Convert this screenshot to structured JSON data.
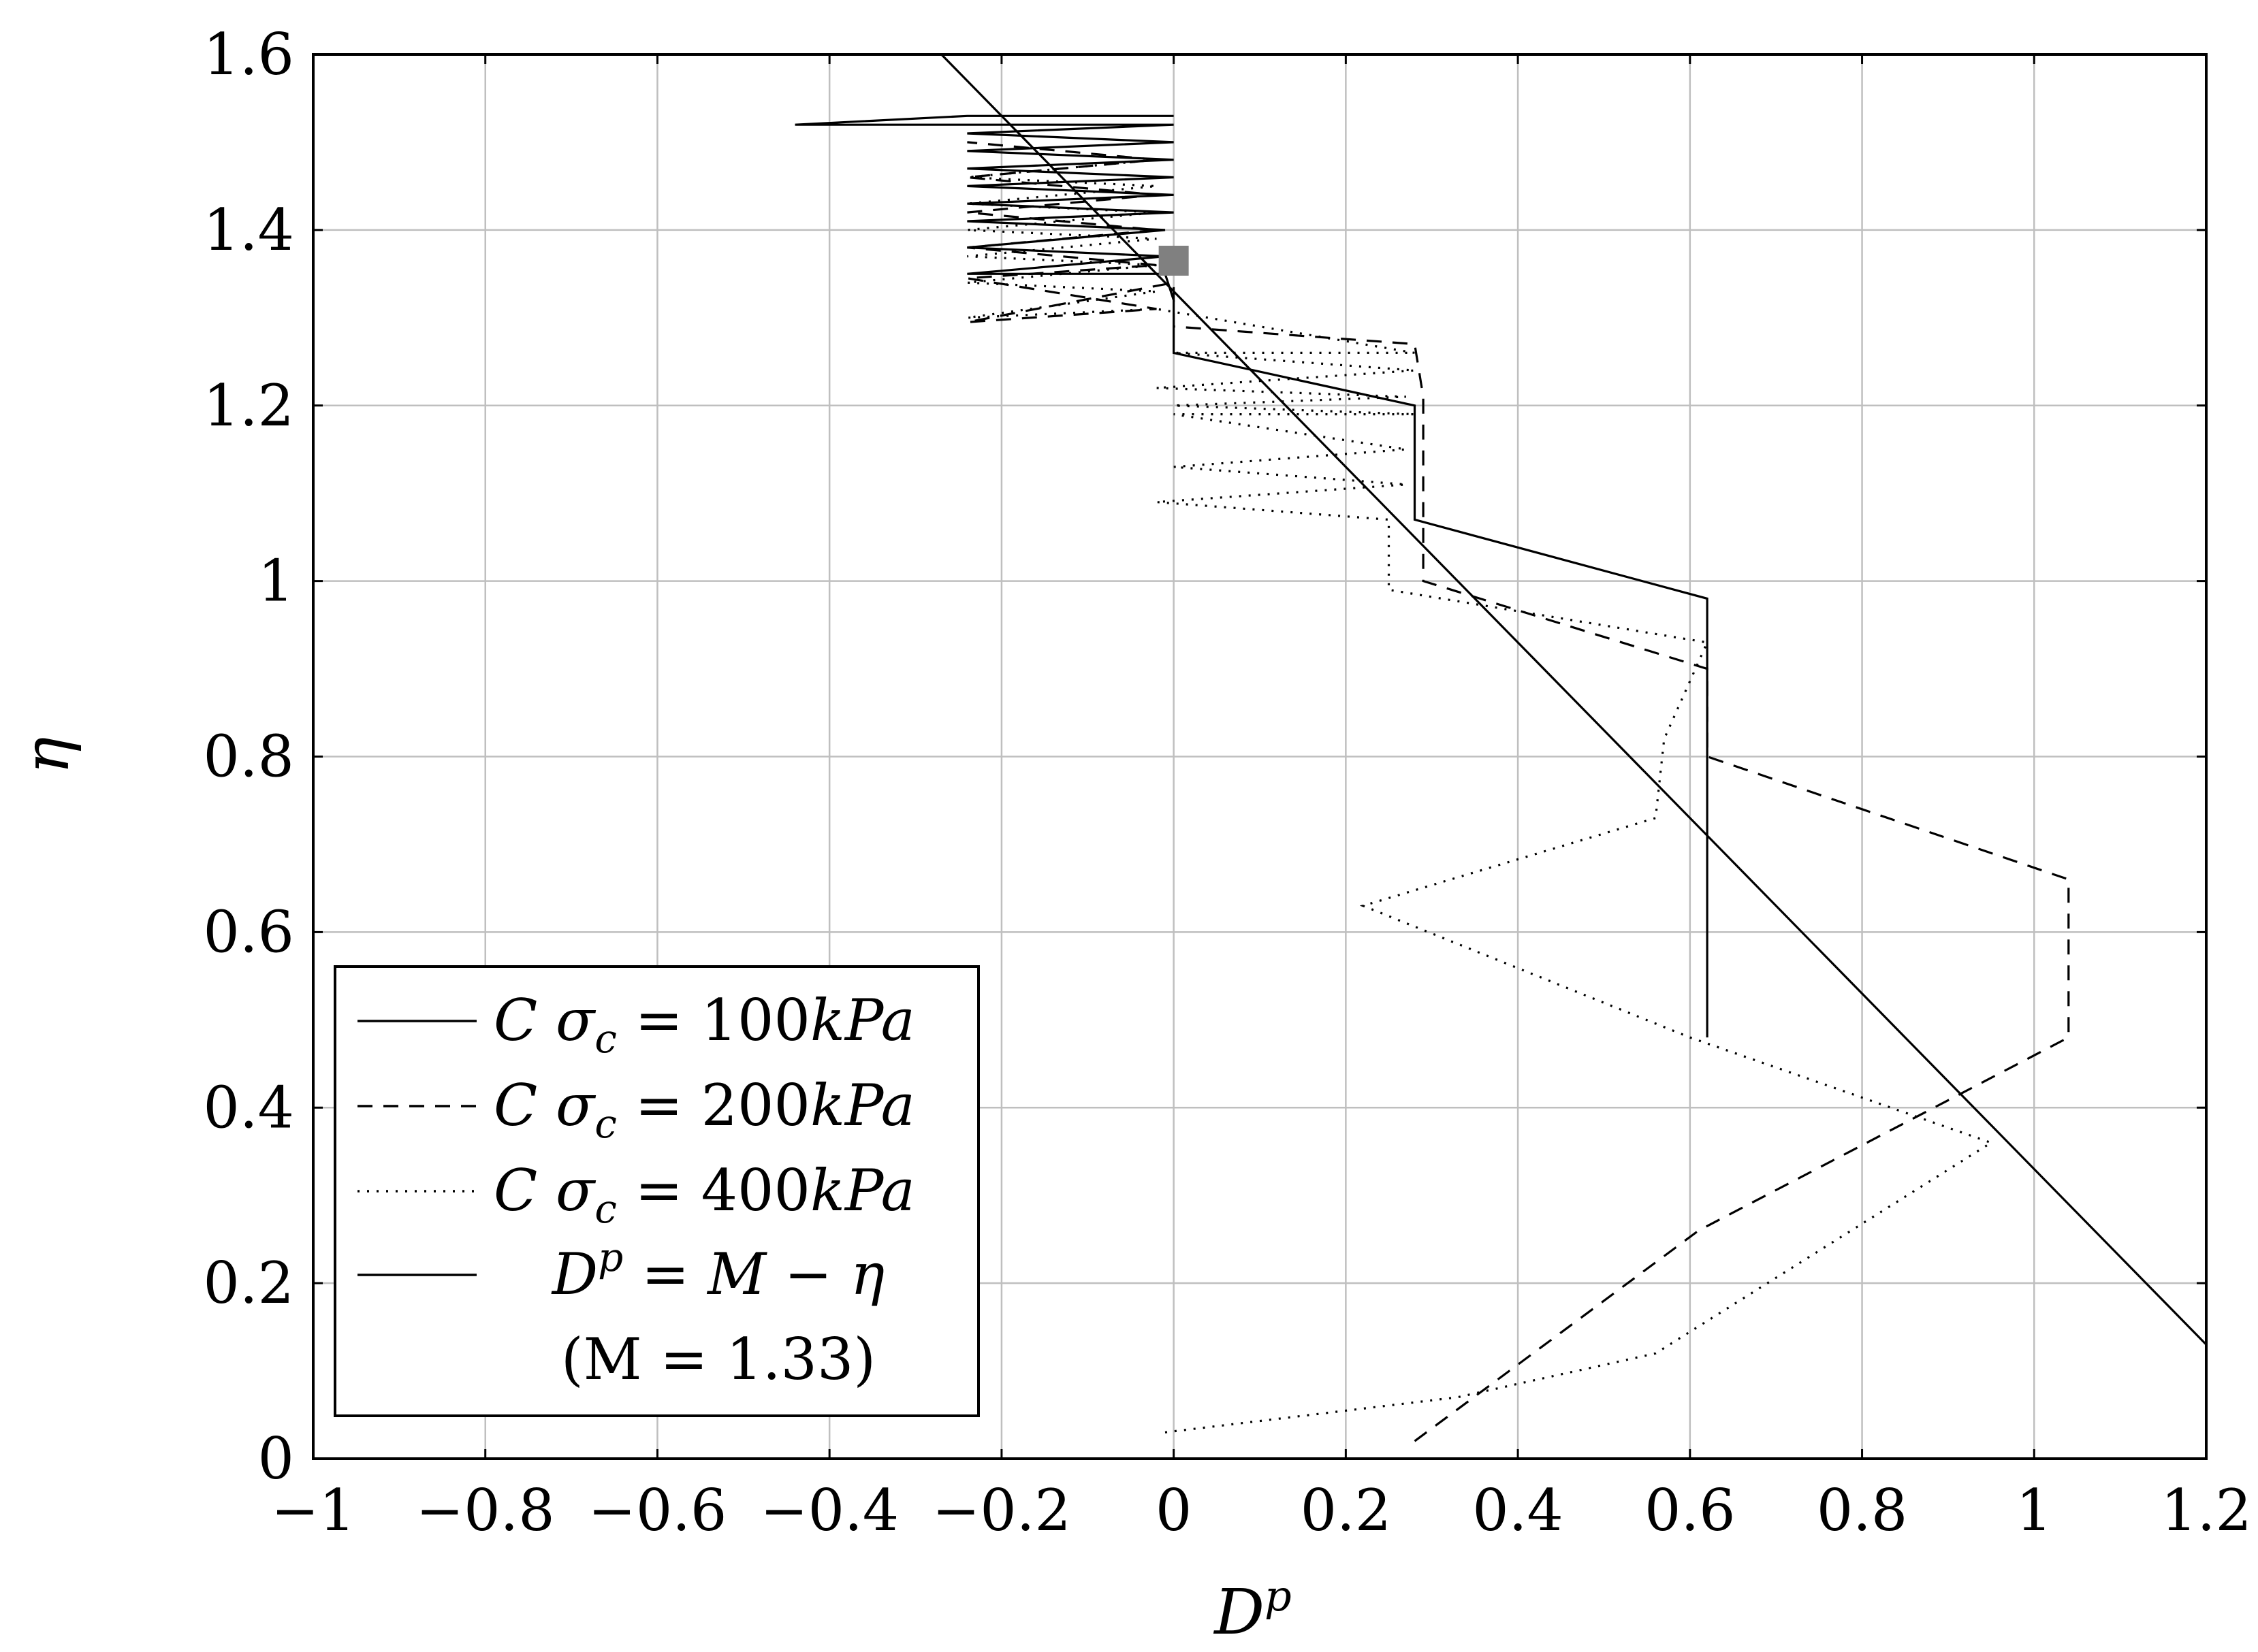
{
  "chart_data": {
    "type": "line",
    "xlabel": "D",
    "xlabel_sup": "p",
    "ylabel": "η",
    "xlim": [
      -1,
      1.2
    ],
    "ylim": [
      0,
      1.6
    ],
    "grid": true,
    "legend_position": "bottom-left",
    "x_ticks": [
      {
        "value": -1,
        "label": "−1"
      },
      {
        "value": -0.8,
        "label": "−0.8"
      },
      {
        "value": -0.6,
        "label": "−0.6"
      },
      {
        "value": -0.4,
        "label": "−0.4"
      },
      {
        "value": -0.2,
        "label": "−0.2"
      },
      {
        "value": 0,
        "label": "0"
      },
      {
        "value": 0.2,
        "label": "0.2"
      },
      {
        "value": 0.4,
        "label": "0.4"
      },
      {
        "value": 0.6,
        "label": "0.6"
      },
      {
        "value": 0.8,
        "label": "0.8"
      },
      {
        "value": 1,
        "label": "1"
      },
      {
        "value": 1.2,
        "label": "1.2"
      }
    ],
    "y_ticks": [
      {
        "value": 0,
        "label": "0"
      },
      {
        "value": 0.2,
        "label": "0.2"
      },
      {
        "value": 0.4,
        "label": "0.4"
      },
      {
        "value": 0.6,
        "label": "0.6"
      },
      {
        "value": 0.8,
        "label": "0.8"
      },
      {
        "value": 1,
        "label": "1"
      },
      {
        "value": 1.2,
        "label": "1.2"
      },
      {
        "value": 1.4,
        "label": "1.4"
      },
      {
        "value": 1.6,
        "label": "1.6"
      }
    ],
    "series": [
      {
        "name": "C σc = 100kPa",
        "legend": {
          "pre": "C ",
          "sigma": "σ",
          "sub": "c",
          "post": " = 100",
          "unit": "kPa"
        },
        "style": "solid",
        "points": [
          [
            0.62,
            0.48
          ],
          [
            0.62,
            0.98
          ],
          [
            0.28,
            1.07
          ],
          [
            0.28,
            1.2
          ],
          [
            0.0,
            1.26
          ],
          [
            0.0,
            1.32
          ],
          [
            -0.01,
            1.35
          ],
          [
            -0.24,
            1.35
          ],
          [
            -0.01,
            1.37
          ],
          [
            -0.24,
            1.38
          ],
          [
            -0.01,
            1.4
          ],
          [
            -0.24,
            1.41
          ],
          [
            0.0,
            1.42
          ],
          [
            -0.24,
            1.43
          ],
          [
            0.0,
            1.44
          ],
          [
            -0.24,
            1.45
          ],
          [
            0.0,
            1.46
          ],
          [
            -0.24,
            1.47
          ],
          [
            0.0,
            1.48
          ],
          [
            -0.24,
            1.49
          ],
          [
            0.0,
            1.5
          ],
          [
            -0.24,
            1.51
          ],
          [
            0.0,
            1.52
          ],
          [
            -0.24,
            1.52
          ],
          [
            -0.44,
            1.52
          ],
          [
            -0.24,
            1.53
          ],
          [
            0.0,
            1.53
          ]
        ]
      },
      {
        "name": "C σc = 200kPa",
        "legend": {
          "pre": "C ",
          "sigma": "σ",
          "sub": "c",
          "post": " = 200",
          "unit": "kPa"
        },
        "style": "dashed",
        "points": [
          [
            0.28,
            0.02
          ],
          [
            0.61,
            0.26
          ],
          [
            1.04,
            0.48
          ],
          [
            1.04,
            0.66
          ],
          [
            0.62,
            0.8
          ],
          [
            0.62,
            0.9
          ],
          [
            0.29,
            1.0
          ],
          [
            0.29,
            1.21
          ],
          [
            0.28,
            1.27
          ],
          [
            0.0,
            1.29
          ],
          [
            0.0,
            1.34
          ],
          [
            -0.24,
            1.295
          ],
          [
            -0.02,
            1.31
          ],
          [
            -0.24,
            1.345
          ],
          [
            -0.02,
            1.36
          ],
          [
            -0.24,
            1.38
          ],
          [
            -0.02,
            1.4
          ],
          [
            -0.24,
            1.42
          ],
          [
            -0.02,
            1.44
          ],
          [
            -0.24,
            1.46
          ],
          [
            -0.02,
            1.48
          ],
          [
            -0.24,
            1.5
          ]
        ]
      },
      {
        "name": "C σc = 400kPa",
        "legend": {
          "pre": "C ",
          "sigma": "σ",
          "sub": "c",
          "post": " = 400",
          "unit": "kPa"
        },
        "style": "dotted",
        "points": [
          [
            -0.01,
            0.03
          ],
          [
            0.33,
            0.07
          ],
          [
            0.56,
            0.12
          ],
          [
            0.95,
            0.36
          ],
          [
            0.6,
            0.48
          ],
          [
            0.22,
            0.63
          ],
          [
            0.56,
            0.73
          ],
          [
            0.57,
            0.82
          ],
          [
            0.62,
            0.93
          ],
          [
            0.25,
            0.99
          ],
          [
            0.25,
            1.07
          ],
          [
            -0.02,
            1.09
          ],
          [
            0.27,
            1.11
          ],
          [
            0.0,
            1.13
          ],
          [
            0.27,
            1.15
          ],
          [
            0.0,
            1.19
          ],
          [
            0.28,
            1.19
          ],
          [
            0.0,
            1.2
          ],
          [
            0.27,
            1.21
          ],
          [
            -0.02,
            1.22
          ],
          [
            0.28,
            1.24
          ],
          [
            0.0,
            1.26
          ],
          [
            0.28,
            1.26
          ],
          [
            -0.02,
            1.31
          ],
          [
            -0.24,
            1.3
          ],
          [
            -0.02,
            1.33
          ],
          [
            -0.24,
            1.34
          ],
          [
            -0.02,
            1.36
          ],
          [
            -0.24,
            1.37
          ],
          [
            -0.02,
            1.39
          ],
          [
            -0.24,
            1.4
          ],
          [
            -0.02,
            1.42
          ],
          [
            -0.24,
            1.43
          ],
          [
            -0.02,
            1.45
          ],
          [
            -0.24,
            1.46
          ],
          [
            -0.02,
            1.48
          ]
        ]
      },
      {
        "name": "Dp = M − η (M = 1.33)",
        "legend": {
          "lhs": "D",
          "lhs_sup": "p",
          "rhs": " = M − η",
          "line2": "(M = 1.33)"
        },
        "style": "solid",
        "points": [
          [
            -0.27,
            1.6
          ],
          [
            1.2,
            0.13
          ]
        ]
      }
    ],
    "markers": [
      {
        "x": 0.0,
        "y": 1.365,
        "shape": "square",
        "color": "#808080"
      }
    ]
  }
}
